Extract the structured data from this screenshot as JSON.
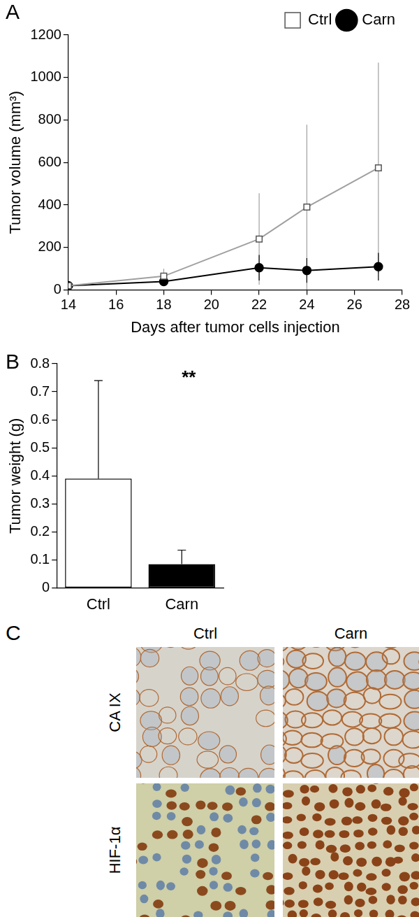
{
  "chart_data": [
    {
      "type": "line",
      "panel": "A",
      "x_label": "Days after tumor cells injection",
      "y_label": "Tumor volume (mm³)",
      "x": [
        14,
        18,
        22,
        24,
        27
      ],
      "xlim": [
        14,
        28
      ],
      "xticks": [
        14,
        16,
        18,
        20,
        22,
        24,
        26,
        28
      ],
      "ylim": [
        0,
        1200
      ],
      "yticks": [
        0,
        200,
        400,
        600,
        800,
        1000,
        1200
      ],
      "grid": false,
      "legend": "upper right",
      "series": [
        {
          "name": "Ctrl",
          "color": "#a0a0a0",
          "marker": "open_square",
          "values": [
            20,
            65,
            240,
            390,
            575
          ],
          "errors": [
            10,
            35,
            215,
            388,
            495
          ]
        },
        {
          "name": "Carn",
          "color": "#000000",
          "marker": "circle",
          "values": [
            20,
            40,
            105,
            92,
            110
          ],
          "errors": [
            5,
            10,
            60,
            58,
            65
          ]
        }
      ]
    },
    {
      "type": "bar",
      "panel": "B",
      "y_label": "Tumor weight (g)",
      "categories": [
        "Ctrl",
        "Carn"
      ],
      "values": [
        0.39,
        0.085
      ],
      "errors": [
        0.35,
        0.05
      ],
      "colors": [
        "#ffffff",
        "#000000"
      ],
      "ylim": [
        0,
        0.8
      ],
      "yticks": [
        0,
        0.1,
        0.2,
        0.3,
        0.4,
        0.5,
        0.6,
        0.7,
        0.8
      ],
      "grid": false,
      "annotations": [
        {
          "text": "**",
          "category": "Carn"
        }
      ]
    }
  ],
  "panel_c": {
    "panel": "C",
    "columns": [
      "Ctrl",
      "Carn"
    ],
    "rows": [
      "CA IX",
      "HIF-1α"
    ]
  }
}
